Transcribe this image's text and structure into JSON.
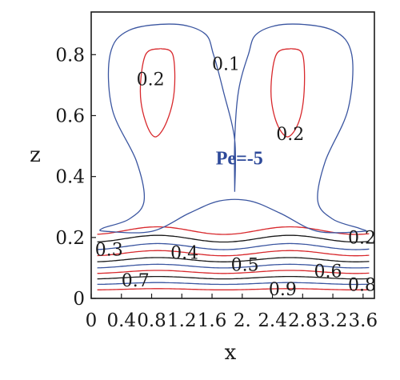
{
  "chart_data": {
    "type": "contour",
    "annotation": "Pe=-5",
    "xlabel": "x",
    "ylabel": "z",
    "xlim": [
      0,
      3.75
    ],
    "ylim": [
      0,
      0.94
    ],
    "x_ticks": [
      0,
      0.4,
      0.8,
      1.2,
      1.6,
      2.0,
      2.4,
      2.8,
      3.2,
      3.6
    ],
    "x_tick_labels": [
      "0",
      "0.4",
      "0.8",
      "1.2",
      "1.6",
      "2.",
      "2.4",
      "2.8",
      "3.2",
      "3.6"
    ],
    "y_ticks": [
      0,
      0.2,
      0.4,
      0.6,
      0.8
    ],
    "y_tick_labels": [
      "0",
      "0.2",
      "0.4",
      "0.6",
      "0.8"
    ],
    "colors": {
      "blue": "#3a55a0",
      "red": "#d8282c",
      "black": "#1a1a1a",
      "annotation": "#2e4a9a"
    },
    "closed_contours": [
      {
        "level": "0.1",
        "color": "blue",
        "points": [
          [
            1.9,
            0.35
          ],
          [
            1.9,
            0.52
          ],
          [
            1.75,
            0.68
          ],
          [
            1.62,
            0.8
          ],
          [
            1.5,
            0.87
          ],
          [
            1.1,
            0.9
          ],
          [
            0.5,
            0.88
          ],
          [
            0.25,
            0.8
          ],
          [
            0.28,
            0.62
          ],
          [
            0.6,
            0.45
          ],
          [
            0.7,
            0.32
          ],
          [
            0.5,
            0.26
          ],
          [
            0.15,
            0.23
          ],
          [
            0.2,
            0.22
          ],
          [
            0.8,
            0.22
          ],
          [
            1.3,
            0.28
          ],
          [
            1.7,
            0.32
          ],
          [
            2.1,
            0.32
          ],
          [
            2.5,
            0.28
          ],
          [
            3.0,
            0.22
          ],
          [
            3.6,
            0.22
          ],
          [
            3.55,
            0.23
          ],
          [
            3.2,
            0.26
          ],
          [
            3.0,
            0.32
          ],
          [
            3.1,
            0.45
          ],
          [
            3.4,
            0.62
          ],
          [
            3.45,
            0.8
          ],
          [
            3.2,
            0.88
          ],
          [
            2.6,
            0.9
          ],
          [
            2.2,
            0.87
          ],
          [
            2.08,
            0.8
          ],
          [
            1.95,
            0.68
          ],
          [
            1.9,
            0.52
          ],
          [
            1.9,
            0.35
          ]
        ]
      },
      {
        "level": "0.2",
        "color": "red",
        "points": [
          [
            0.92,
            0.82
          ],
          [
            0.72,
            0.8
          ],
          [
            0.65,
            0.68
          ],
          [
            0.72,
            0.58
          ],
          [
            0.85,
            0.53
          ],
          [
            1.0,
            0.58
          ],
          [
            1.1,
            0.68
          ],
          [
            1.08,
            0.8
          ],
          [
            0.92,
            0.82
          ]
        ]
      },
      {
        "level": "0.2",
        "color": "red",
        "points": [
          [
            2.65,
            0.82
          ],
          [
            2.45,
            0.8
          ],
          [
            2.38,
            0.68
          ],
          [
            2.45,
            0.58
          ],
          [
            2.6,
            0.53
          ],
          [
            2.75,
            0.58
          ],
          [
            2.82,
            0.68
          ],
          [
            2.8,
            0.8
          ],
          [
            2.65,
            0.82
          ]
        ]
      }
    ],
    "wavy_contours": [
      {
        "level": "0.2",
        "color": "red",
        "base": 0.21,
        "amp": 0.025
      },
      {
        "level": "",
        "color": "black",
        "base": 0.185,
        "amp": 0.022
      },
      {
        "level": "0.3",
        "color": "blue",
        "base": 0.16,
        "amp": 0.02
      },
      {
        "level": "0.4",
        "color": "red",
        "base": 0.14,
        "amp": 0.017
      },
      {
        "level": "",
        "color": "black",
        "base": 0.12,
        "amp": 0.014
      },
      {
        "level": "0.5",
        "color": "blue",
        "base": 0.1,
        "amp": 0.012
      },
      {
        "level": "0.6",
        "color": "red",
        "base": 0.082,
        "amp": 0.01
      },
      {
        "level": "0.7",
        "color": "black",
        "base": 0.064,
        "amp": 0.008
      },
      {
        "level": "0.8",
        "color": "blue",
        "base": 0.046,
        "amp": 0.006
      },
      {
        "level": "0.9",
        "color": "red",
        "base": 0.028,
        "amp": 0.004
      }
    ],
    "contour_labels": [
      {
        "text": "0.2",
        "x": 0.6,
        "y": 0.7
      },
      {
        "text": "0.1",
        "x": 1.6,
        "y": 0.75
      },
      {
        "text": "0.2",
        "x": 2.45,
        "y": 0.52
      },
      {
        "text": "0.3",
        "x": 0.05,
        "y": 0.14
      },
      {
        "text": "0.4",
        "x": 1.05,
        "y": 0.13
      },
      {
        "text": "0.5",
        "x": 1.85,
        "y": 0.09
      },
      {
        "text": "0.2",
        "x": 3.4,
        "y": 0.18
      },
      {
        "text": "0.6",
        "x": 2.95,
        "y": 0.07
      },
      {
        "text": "0.7",
        "x": 0.4,
        "y": 0.04
      },
      {
        "text": "0.9",
        "x": 2.35,
        "y": 0.01
      },
      {
        "text": "0.8",
        "x": 3.4,
        "y": 0.025
      }
    ],
    "annotation_pos": {
      "x": 1.65,
      "y": 0.44
    }
  }
}
